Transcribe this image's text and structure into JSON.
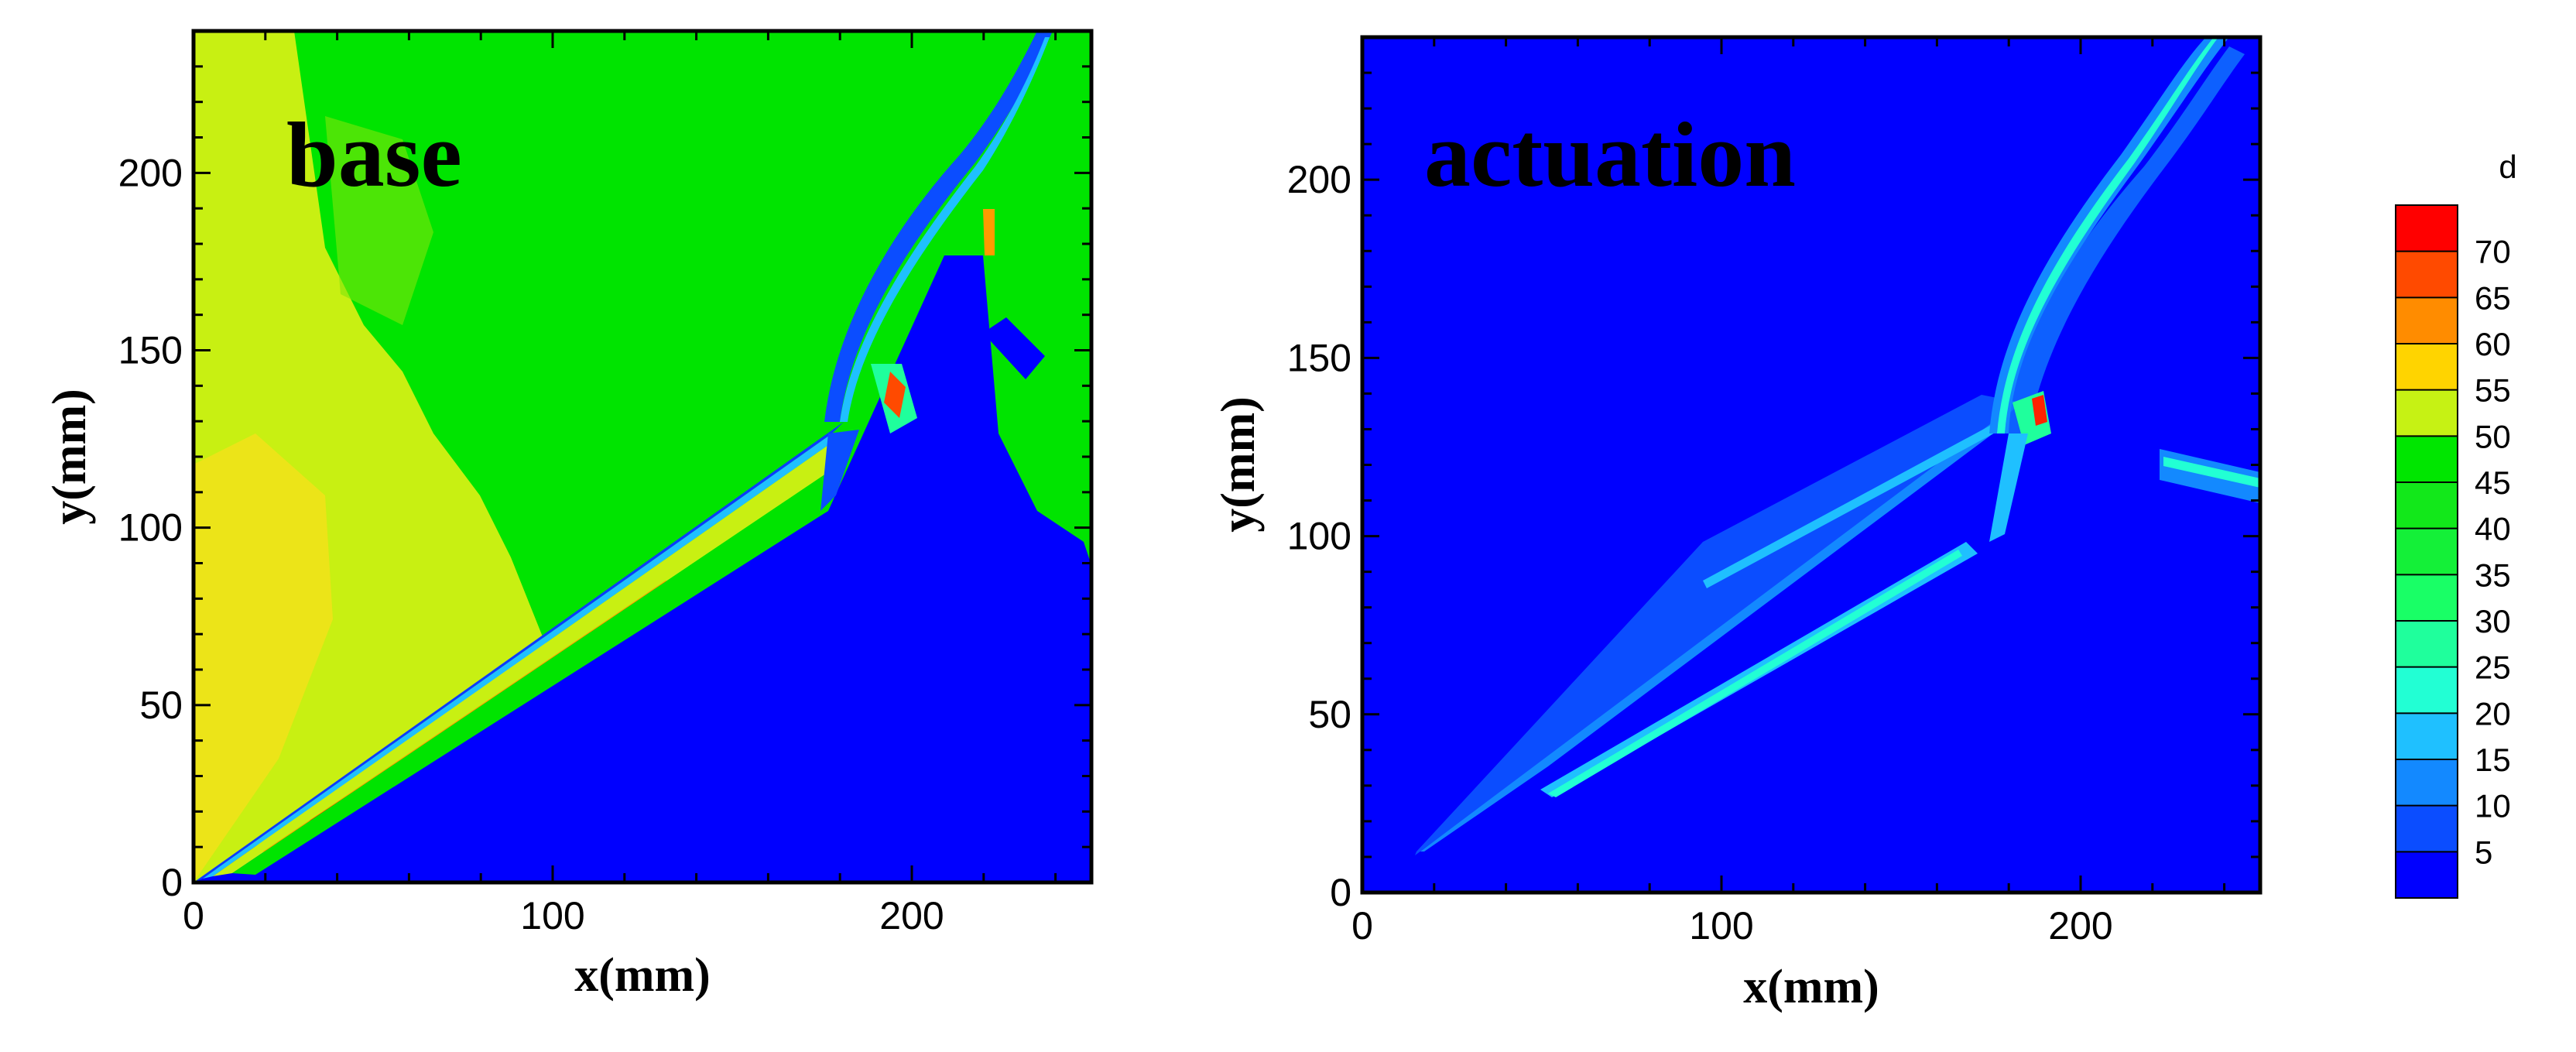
{
  "chart_data": [
    {
      "type": "heatmap",
      "title": "base",
      "xlabel": "x(mm)",
      "ylabel": "y(mm)",
      "xlim": [
        0,
        250
      ],
      "ylim": [
        0,
        240
      ],
      "xticks": [
        0,
        100,
        200
      ],
      "yticks": [
        0,
        50,
        100,
        150,
        200
      ],
      "colorbar": "d"
    },
    {
      "type": "heatmap",
      "title": "actuation",
      "xlabel": "x(mm)",
      "ylabel": "y(mm)",
      "xlim": [
        0,
        250
      ],
      "ylim": [
        0,
        240
      ],
      "xticks": [
        0,
        100,
        200
      ],
      "yticks": [
        0,
        50,
        100,
        150,
        200
      ],
      "colorbar": "d"
    }
  ],
  "colorbar": {
    "title": "d",
    "levels": [
      5,
      10,
      15,
      20,
      25,
      30,
      35,
      40,
      45,
      50,
      55,
      60,
      65,
      70
    ],
    "colors": [
      "#0000ff",
      "#0b4dff",
      "#1389ff",
      "#1fc0ff",
      "#22ffd4",
      "#1fff9c",
      "#19ff66",
      "#14f038",
      "#12e81a",
      "#00e600",
      "#c6f214",
      "#ffd400",
      "#ff8c00",
      "#ff4a00",
      "#ff0000"
    ]
  },
  "colors": {
    "background_blue": "#0000ff",
    "field_green": "#00e400",
    "upstream_yellow": "#c8f012",
    "hot_orange": "#ff9a00",
    "hot_red": "#ff1a00"
  }
}
